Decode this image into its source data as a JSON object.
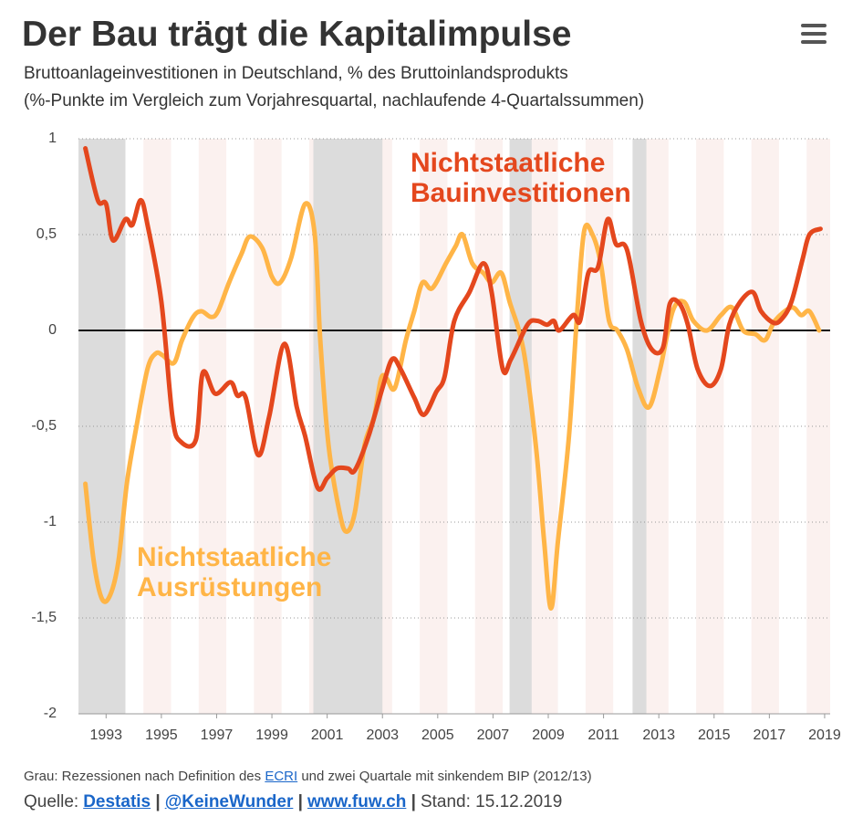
{
  "title": "Der Bau trägt die Kapitalimpulse",
  "subtitle": [
    "Bruttoanlageinvestitionen in Deutschland, % des Bruttoinlandsprodukts",
    "(%-Punkte im Vergleich zum Vorjahresquartal, nachlaufende 4-Quartalssummen)"
  ],
  "chart_data": {
    "type": "line",
    "xlim": [
      1992,
      2019.2
    ],
    "xticks": [
      1993,
      1995,
      1997,
      1999,
      2001,
      2003,
      2005,
      2007,
      2009,
      2011,
      2013,
      2015,
      2017,
      2019
    ],
    "ylim": [
      -2,
      1
    ],
    "yticks": [
      1,
      {
        "value": 0.5,
        "label": "0,5"
      },
      0,
      {
        "value": -0.5,
        "label": "-0,5"
      },
      -1,
      {
        "value": -1.5,
        "label": "-1,5"
      },
      -2
    ],
    "grid": true,
    "recessions": [
      [
        1992,
        1993.7
      ],
      [
        2000.5,
        2003.0
      ],
      [
        2007.6,
        2008.4
      ],
      [
        2012.05,
        2012.55
      ]
    ],
    "series": [
      {
        "name": "Nichtstaatliche Bauinvestitionen",
        "color": "#e4471d",
        "x": [
          1992.25,
          1992.7,
          1993,
          1993.25,
          1993.7,
          1993.95,
          1994.25,
          1994.5,
          1995,
          1995.4,
          1995.7,
          1996.25,
          1996.5,
          1996.95,
          1997.5,
          1997.75,
          1998.05,
          1998.5,
          1998.9,
          1999.45,
          1999.9,
          2000.2,
          2000.65,
          2001,
          2001.35,
          2001.75,
          2002,
          2002.5,
          2003,
          2003.35,
          2003.65,
          2004.15,
          2004.5,
          2004.95,
          2005.25,
          2005.6,
          2006.15,
          2006.65,
          2006.95,
          2007.35,
          2007.65,
          2008.25,
          2008.6,
          2008.95,
          2009.2,
          2009.4,
          2009.9,
          2010.15,
          2010.45,
          2010.8,
          2011.15,
          2011.45,
          2011.85,
          2012.35,
          2012.75,
          2013.15,
          2013.4,
          2013.75,
          2014.05,
          2014.4,
          2014.85,
          2015.25,
          2015.55,
          2015.95,
          2016.4,
          2016.7,
          2017.15,
          2017.45,
          2017.8,
          2018.2,
          2018.45,
          2018.85
        ],
        "values": [
          0.95,
          0.68,
          0.66,
          0.47,
          0.58,
          0.55,
          0.68,
          0.55,
          0.15,
          -0.45,
          -0.58,
          -0.57,
          -0.22,
          -0.33,
          -0.27,
          -0.34,
          -0.35,
          -0.65,
          -0.45,
          -0.07,
          -0.4,
          -0.55,
          -0.82,
          -0.77,
          -0.72,
          -0.72,
          -0.73,
          -0.55,
          -0.3,
          -0.15,
          -0.2,
          -0.35,
          -0.44,
          -0.32,
          -0.24,
          0.05,
          0.2,
          0.35,
          0.2,
          -0.2,
          -0.15,
          0.03,
          0.05,
          0.03,
          0.05,
          0,
          0.08,
          0.05,
          0.3,
          0.33,
          0.58,
          0.45,
          0.42,
          0.05,
          -0.1,
          -0.09,
          0.14,
          0.14,
          0.03,
          -0.2,
          -0.29,
          -0.2,
          0.03,
          0.15,
          0.2,
          0.1,
          0.04,
          0.06,
          0.15,
          0.37,
          0.5,
          0.53
        ]
      },
      {
        "name": "Nichtstaatliche Ausrüstungen",
        "color": "#ffb547",
        "x": [
          1992.25,
          1992.55,
          1992.85,
          1993.15,
          1993.45,
          1993.75,
          1994.1,
          1994.5,
          1994.8,
          1995.05,
          1995.45,
          1995.75,
          1996.15,
          1996.45,
          1996.8,
          1997.05,
          1997.45,
          1997.9,
          1998.2,
          1998.65,
          1999,
          1999.3,
          1999.7,
          2000.2,
          2000.55,
          2000.75,
          2001.05,
          2001.45,
          2001.7,
          2002,
          2002.35,
          2002.7,
          2002.95,
          2003.15,
          2003.45,
          2003.85,
          2004.15,
          2004.45,
          2004.8,
          2005.3,
          2005.65,
          2005.9,
          2006.25,
          2006.65,
          2006.95,
          2007.3,
          2007.6,
          2008.1,
          2008.55,
          2008.85,
          2009.1,
          2009.35,
          2009.75,
          2010.05,
          2010.3,
          2010.6,
          2010.9,
          2011.2,
          2011.5,
          2011.85,
          2012.25,
          2012.65,
          2013.05,
          2013.5,
          2013.9,
          2014.25,
          2014.75,
          2015.25,
          2015.65,
          2016.05,
          2016.5,
          2016.85,
          2017.2,
          2017.8,
          2018.15,
          2018.45,
          2018.8
        ],
        "values": [
          -0.8,
          -1.2,
          -1.4,
          -1.38,
          -1.2,
          -0.8,
          -0.5,
          -0.2,
          -0.12,
          -0.13,
          -0.17,
          -0.05,
          0.07,
          0.1,
          0.07,
          0.1,
          0.25,
          0.4,
          0.49,
          0.43,
          0.28,
          0.25,
          0.38,
          0.66,
          0.5,
          -0.05,
          -0.6,
          -0.95,
          -1.05,
          -0.95,
          -0.6,
          -0.45,
          -0.25,
          -0.25,
          -0.3,
          -0.05,
          0.1,
          0.25,
          0.22,
          0.35,
          0.44,
          0.5,
          0.35,
          0.3,
          0.25,
          0.3,
          0.15,
          -0.1,
          -0.6,
          -1.1,
          -1.45,
          -1.1,
          -0.55,
          0.1,
          0.52,
          0.5,
          0.35,
          0.05,
          0,
          -0.1,
          -0.3,
          -0.4,
          -0.2,
          0.1,
          0.15,
          0.05,
          0,
          0.08,
          0.12,
          0,
          -0.02,
          -0.05,
          0.05,
          0.12,
          0.08,
          0.1,
          0
        ]
      }
    ]
  },
  "footnote": [
    "Grau: Rezessionen nach Definition des",
    "ECRI",
    "und zwei Quartale mit sinkendem BIP (2012/13)"
  ],
  "source": [
    "Quelle:",
    "Destatis",
    "|",
    "@KeineWunder",
    "|",
    "www.fuw.ch",
    "|",
    "Stand: 15.12.2019"
  ]
}
